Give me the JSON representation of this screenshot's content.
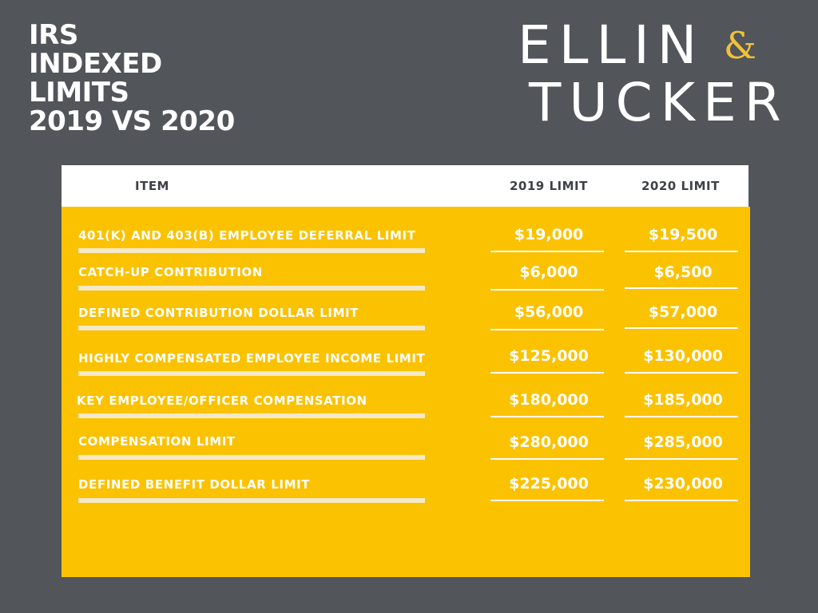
{
  "title": {
    "line1": "IRS",
    "line2": "INDEXED",
    "line3": "LIMITS",
    "line4": "2019 VS 2020"
  },
  "logo": {
    "line1": "ELLIN",
    "amp": "&",
    "line2": "TUCKER",
    "amp_color": "#f0c23a"
  },
  "table": {
    "headers": {
      "item": "ITEM",
      "y2019": "2019 LIMIT",
      "y2020": "2020 LIMIT"
    },
    "rows": [
      {
        "item": "401(K) AND 403(B) EMPLOYEE DEFERRAL LIMIT",
        "y2019": "$19,000",
        "y2020": "$19,500"
      },
      {
        "item": "CATCH-UP CONTRIBUTION",
        "y2019": "$6,000",
        "y2020": "$6,500"
      },
      {
        "item": "DEFINED CONTRIBUTION DOLLAR LIMIT",
        "y2019": "$56,000",
        "y2020": "$57,000"
      },
      {
        "item": "HIGHLY COMPENSATED EMPLOYEE INCOME LIMIT",
        "y2019": "$125,000",
        "y2020": "$130,000"
      },
      {
        "item": "KEY EMPLOYEE/OFFICER COMPENSATION",
        "y2019": "$180,000",
        "y2020": "$185,000"
      },
      {
        "item": "COMPENSATION LIMIT",
        "y2019": "$280,000",
        "y2020": "$285,000"
      },
      {
        "item": "DEFINED BENEFIT DOLLAR LIMIT",
        "y2019": "$225,000",
        "y2020": "$230,000"
      }
    ]
  },
  "colors": {
    "background": "#52555a",
    "accent": "#fbc202",
    "header_bg": "#ffffff",
    "header_text": "#3e4146"
  }
}
